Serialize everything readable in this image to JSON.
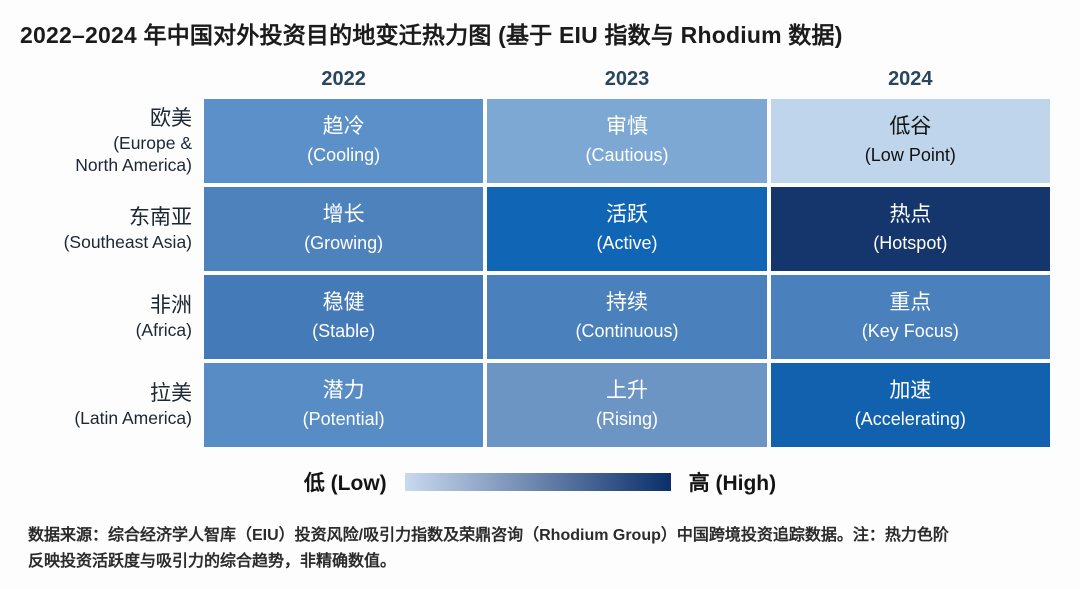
{
  "title": "2022–2024 年中国对外投资目的地变迁热力图 (基于 EIU 指数与 Rhodium 数据)",
  "chart_data": {
    "type": "heatmap",
    "columns": [
      "2022",
      "2023",
      "2024"
    ],
    "rows": [
      {
        "label_zh": "欧美",
        "label_en": "(Europe &\nNorth America)",
        "cells": [
          {
            "zh": "趋冷",
            "en": "(Cooling)",
            "color": "#5b90c8",
            "text": "#ffffff",
            "level": "medium-low"
          },
          {
            "zh": "审慎",
            "en": "(Cautious)",
            "color": "#7ea8d4",
            "text": "#ffffff",
            "level": "low-medium"
          },
          {
            "zh": "低谷",
            "en": "(Low Point)",
            "color": "#bfd5eb",
            "text": "#121212",
            "level": "low"
          }
        ]
      },
      {
        "label_zh": "东南亚",
        "label_en": "(Southeast Asia)",
        "cells": [
          {
            "zh": "增长",
            "en": "(Growing)",
            "color": "#4e82bd",
            "text": "#ffffff",
            "level": "medium"
          },
          {
            "zh": "活跃",
            "en": "(Active)",
            "color": "#1065b4",
            "text": "#ffffff",
            "level": "high"
          },
          {
            "zh": "热点",
            "en": "(Hotspot)",
            "color": "#15356d",
            "text": "#ffffff",
            "level": "highest"
          }
        ]
      },
      {
        "label_zh": "非洲",
        "label_en": "(Africa)",
        "cells": [
          {
            "zh": "稳健",
            "en": "(Stable)",
            "color": "#447ab7",
            "text": "#ffffff",
            "level": "medium"
          },
          {
            "zh": "持续",
            "en": "(Continuous)",
            "color": "#4a80bc",
            "text": "#ffffff",
            "level": "medium"
          },
          {
            "zh": "重点",
            "en": "(Key Focus)",
            "color": "#4a80bc",
            "text": "#ffffff",
            "level": "medium"
          }
        ]
      },
      {
        "label_zh": "拉美",
        "label_en": "(Latin America)",
        "cells": [
          {
            "zh": "潜力",
            "en": "(Potential)",
            "color": "#588cc5",
            "text": "#ffffff",
            "level": "medium-low"
          },
          {
            "zh": "上升",
            "en": "(Rising)",
            "color": "#6d95c3",
            "text": "#ffffff",
            "level": "medium-low"
          },
          {
            "zh": "加速",
            "en": "(Accelerating)",
            "color": "#1261ae",
            "text": "#ffffff",
            "level": "high"
          }
        ]
      }
    ],
    "legend": {
      "low_label": "低 (Low)",
      "high_label": "高 (High)",
      "gradient_start": "#c8d9ee",
      "gradient_end": "#0c2f6a"
    }
  },
  "footer": {
    "line1": "数据来源：综合经济学人智库（EIU）投资风险/吸引力指数及荣鼎咨询（Rhodium Group）中国跨境投资追踪数据。注：热力色阶",
    "line2": "反映投资活跃度与吸引力的综合趋势，非精确数值。"
  }
}
